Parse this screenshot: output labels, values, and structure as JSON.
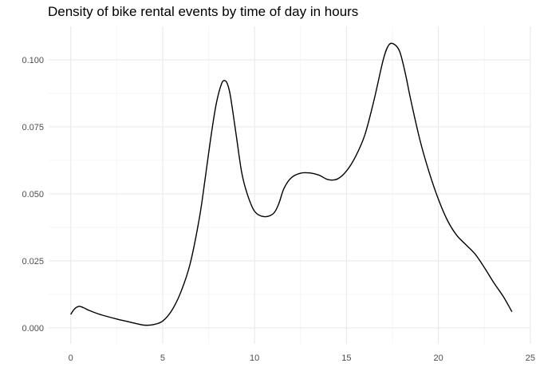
{
  "chart_data": {
    "type": "line",
    "title": "Density of bike rental events by time of day in hours",
    "xlabel": "",
    "ylabel": "",
    "xlim": [
      -1.2,
      25.05
    ],
    "ylim": [
      -0.006,
      0.1125
    ],
    "x_ticks": [
      0,
      5,
      10,
      15,
      20,
      25
    ],
    "x_tick_labels": [
      "0",
      "5",
      "10",
      "15",
      "20",
      "25"
    ],
    "y_ticks": [
      0.0,
      0.025,
      0.05,
      0.075,
      0.1
    ],
    "y_tick_labels": [
      "0.000",
      "0.025",
      "0.050",
      "0.075",
      "0.100"
    ],
    "grid": true,
    "line_color": "#000000",
    "series": [
      {
        "x": [
          0,
          0.2,
          0.45,
          0.7,
          1,
          1.5,
          2,
          2.5,
          3,
          3.5,
          4,
          4.5,
          5,
          5.5,
          6,
          6.5,
          7,
          7.3,
          7.6,
          7.9,
          8.2,
          8.4,
          8.55,
          8.7,
          9,
          9.3,
          9.6,
          10,
          10.5,
          11,
          11.3,
          11.6,
          12,
          12.5,
          13,
          13.5,
          14,
          14.5,
          15,
          15.5,
          16,
          16.5,
          17,
          17.3,
          17.6,
          17.9,
          18.2,
          18.5,
          19,
          19.5,
          20,
          20.5,
          21,
          21.5,
          22,
          22.5,
          23,
          23.5,
          23.8,
          24
        ],
        "y": [
          0.005,
          0.007,
          0.008,
          0.0075,
          0.0065,
          0.0052,
          0.0042,
          0.0033,
          0.0025,
          0.0017,
          0.001,
          0.0012,
          0.0025,
          0.0065,
          0.0135,
          0.024,
          0.041,
          0.055,
          0.07,
          0.083,
          0.091,
          0.0922,
          0.0905,
          0.086,
          0.072,
          0.058,
          0.05,
          0.0435,
          0.0415,
          0.0425,
          0.046,
          0.052,
          0.056,
          0.0577,
          0.0578,
          0.057,
          0.0553,
          0.0555,
          0.0585,
          0.064,
          0.072,
          0.085,
          0.1,
          0.1055,
          0.1058,
          0.103,
          0.095,
          0.085,
          0.07,
          0.058,
          0.048,
          0.04,
          0.0345,
          0.031,
          0.0275,
          0.0225,
          0.017,
          0.012,
          0.0085,
          0.006
        ]
      }
    ]
  }
}
